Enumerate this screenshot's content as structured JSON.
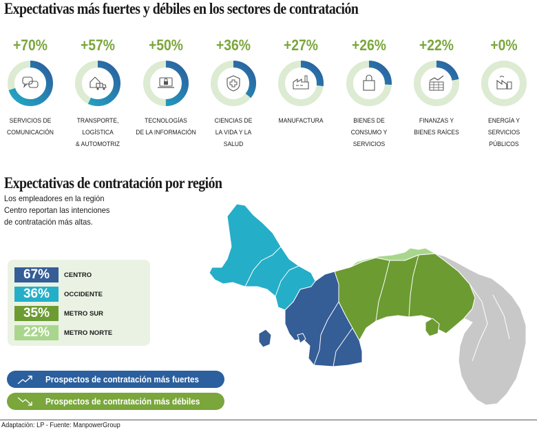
{
  "title": "Expectativas más fuertes y débiles en los sectores de contratación",
  "colors": {
    "green": "#7aa63b",
    "blue": "#2b5f9e",
    "teal": "#23a9c5",
    "ring_bg": "#dcebd2"
  },
  "chart_data": [
    {
      "type": "bar",
      "title": "Expectativas más fuertes y débiles en los sectores de contratación",
      "categories": [
        "SERVICIOS DE COMUNICACIÓN",
        "TRANSPORTE, LOGÍSTICA & AUTOMOTRIZ",
        "TECNOLOGÍAS DE LA INFORMACIÓN",
        "CIENCIAS DE LA VIDA Y LA SALUD",
        "MANUFACTURA",
        "BIENES DE CONSUMO Y SERVICIOS",
        "FINANZAS Y BIENES RAÍCES",
        "ENERGÍA Y SERVICIOS PÚBLICOS"
      ],
      "values": [
        70,
        57,
        50,
        36,
        27,
        26,
        22,
        0
      ],
      "value_labels": [
        "+70%",
        "+57%",
        "+50%",
        "+36%",
        "+27%",
        "+26%",
        "+22%",
        "+0%"
      ],
      "label_lines": [
        [
          "SERVICIOS DE",
          "COMUNICACIÓN"
        ],
        [
          "TRANSPORTE, LOGÍSTICA",
          "& AUTOMOTRIZ"
        ],
        [
          "TECNOLOGÍAS",
          "DE LA INFORMACIÓN"
        ],
        [
          "CIENCIAS DE",
          "LA VIDA Y LA",
          "SALUD"
        ],
        [
          "MANUFACTURA"
        ],
        [
          "BIENES DE",
          "CONSUMO Y",
          "SERVICIOS"
        ],
        [
          "FINANZAS Y",
          "BIENES RAÍCES"
        ],
        [
          "ENERGÍA Y",
          "SERVICIOS",
          "PÚBLICOS"
        ]
      ],
      "icons": [
        "chat-bubbles-icon",
        "truck-warehouse-icon",
        "laptop-lock-icon",
        "shield-cross-icon",
        "factory-icon",
        "shopping-bag-icon",
        "growth-chart-icon",
        "energy-icon"
      ]
    },
    {
      "type": "table",
      "title": "Expectativas de contratación por región",
      "categories": [
        "CENTRO",
        "OCCIDENTE",
        "METRO SUR",
        "METRO NORTE"
      ],
      "values": [
        67,
        36,
        35,
        22
      ],
      "value_labels": [
        "67%",
        "36%",
        "35%",
        "22%"
      ],
      "colors": [
        "#355d96",
        "#25aec8",
        "#6c9b32",
        "#a9d68d"
      ]
    }
  ],
  "region_section": {
    "title": "Expectativas de contratación por región",
    "intro_lines": [
      "Los empleadores en la región",
      "Centro reportan las intenciones",
      "de contratación más altas."
    ]
  },
  "legend": {
    "strong": "Prospectos de contratación más fuertes",
    "weak": "Prospectos de contratación más débiles"
  },
  "source": "Adaptación: LP - Fuente: ManpowerGroup"
}
